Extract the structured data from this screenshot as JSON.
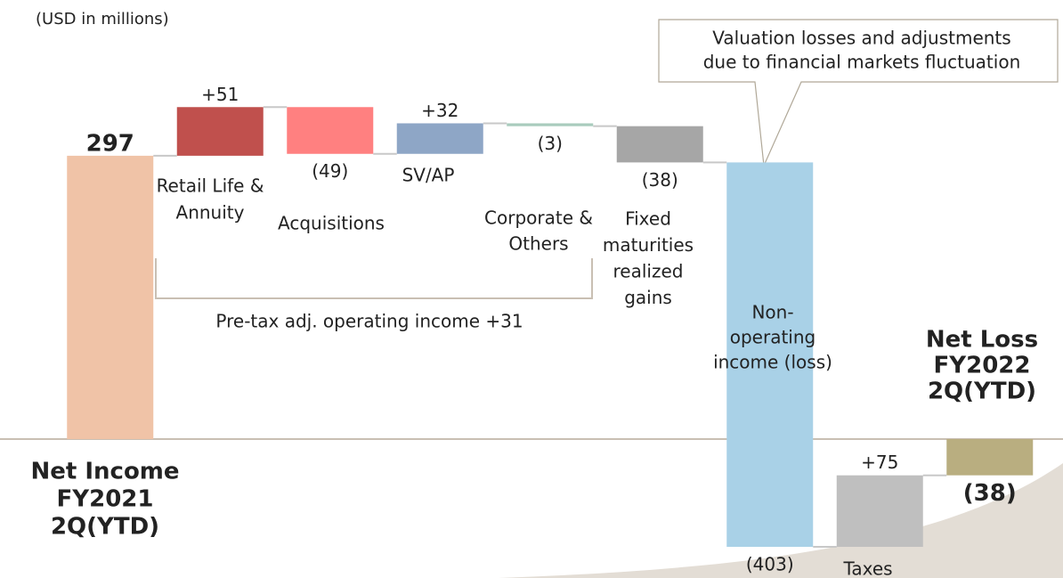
{
  "chart_data": {
    "type": "waterfall",
    "unit_note": "(USD in millions)",
    "callout": [
      "Valuation losses and adjustments",
      "due to financial markets fluctuation"
    ],
    "bracket_label": "Pre-tax adj. operating income +31",
    "categories": [
      [
        "Net Income",
        "FY2021",
        "2Q(YTD)"
      ],
      [
        "Retail Life &",
        "Annuity"
      ],
      [
        "Acquisitions"
      ],
      [
        "SV/AP"
      ],
      [
        "Corporate &",
        "Others"
      ],
      [
        "Fixed",
        "maturities",
        "realized",
        "gains"
      ],
      [
        "Non-",
        "operating",
        "income (loss)"
      ],
      [
        "Taxes"
      ],
      [
        "Net Loss",
        "FY2022",
        "2Q(YTD)"
      ]
    ],
    "values": [
      297,
      51,
      -49,
      32,
      -3,
      -38,
      -403,
      75,
      -38
    ],
    "value_labels": [
      "297",
      "+51",
      "(49)",
      "+32",
      "(3)",
      "(38)",
      "(403)",
      "+75",
      "(38)"
    ],
    "totals": [
      true,
      false,
      false,
      false,
      false,
      false,
      false,
      false,
      true
    ],
    "colors": [
      "#f0c3a7",
      "#c0504d",
      "#ff8080",
      "#8ea6c6",
      "#a9cbbd",
      "#a6a6a6",
      "#a9d1e7",
      "#bfbfbf",
      "#b9ae80"
    ],
    "ylim": [
      -145,
      460
    ]
  }
}
